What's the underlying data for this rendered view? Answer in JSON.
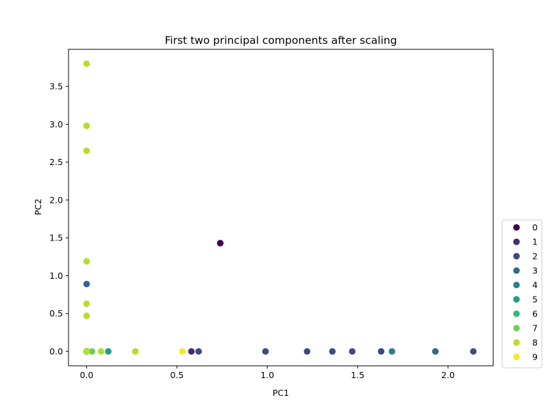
{
  "chart_data": {
    "type": "scatter",
    "title": "First two principal components after scaling",
    "xlabel": "PC1",
    "ylabel": "PC2",
    "xlim": [
      -0.1,
      2.25
    ],
    "ylim": [
      -0.19,
      3.99
    ],
    "xticks": [
      0.0,
      0.5,
      1.0,
      1.5,
      2.0
    ],
    "xtick_labels": [
      "0.0",
      "0.5",
      "1.0",
      "1.5",
      "2.0"
    ],
    "yticks": [
      0.0,
      0.5,
      1.0,
      1.5,
      2.0,
      2.5,
      3.0,
      3.5
    ],
    "ytick_labels": [
      "0.0",
      "0.5",
      "1.0",
      "1.5",
      "2.0",
      "2.5",
      "3.0",
      "3.5"
    ],
    "grid": false,
    "legend_position": "lower-right-outside",
    "series": [
      {
        "name": "0",
        "color": "#440154",
        "points": [
          [
            0.74,
            1.43
          ],
          [
            0.0,
            0.0
          ]
        ]
      },
      {
        "name": "1",
        "color": "#482878",
        "points": [
          [
            0.58,
            0.0
          ],
          [
            0.0,
            0.0
          ]
        ]
      },
      {
        "name": "2",
        "color": "#3e4989",
        "points": [
          [
            0.62,
            0.0
          ],
          [
            0.99,
            0.0
          ],
          [
            1.22,
            0.0
          ],
          [
            1.36,
            0.0
          ],
          [
            1.47,
            0.0
          ],
          [
            1.63,
            0.0
          ],
          [
            2.14,
            0.0
          ],
          [
            0.0,
            0.0
          ]
        ]
      },
      {
        "name": "3",
        "color": "#31688e",
        "points": [
          [
            0.0,
            0.89
          ],
          [
            1.93,
            0.0
          ],
          [
            0.0,
            0.0
          ]
        ]
      },
      {
        "name": "4",
        "color": "#26828e",
        "points": [
          [
            1.69,
            0.0
          ],
          [
            0.0,
            0.0
          ]
        ]
      },
      {
        "name": "5",
        "color": "#1f9e89",
        "points": [
          [
            0.12,
            0.0
          ],
          [
            0.0,
            0.0
          ]
        ]
      },
      {
        "name": "6",
        "color": "#35b779",
        "points": [
          [
            0.0,
            0.0
          ]
        ]
      },
      {
        "name": "7",
        "color": "#6ece58",
        "points": [
          [
            0.03,
            0.0
          ],
          [
            0.0,
            0.0
          ]
        ]
      },
      {
        "name": "8",
        "color": "#b5de2b",
        "points": [
          [
            0.0,
            3.8
          ],
          [
            0.0,
            2.98
          ],
          [
            0.0,
            2.65
          ],
          [
            0.0,
            1.19
          ],
          [
            0.0,
            0.63
          ],
          [
            0.0,
            0.47
          ],
          [
            0.08,
            0.0
          ],
          [
            0.27,
            0.0
          ],
          [
            0.0,
            0.0
          ]
        ]
      },
      {
        "name": "9",
        "color": "#fde725",
        "points": [
          [
            0.53,
            0.0
          ]
        ]
      }
    ]
  }
}
